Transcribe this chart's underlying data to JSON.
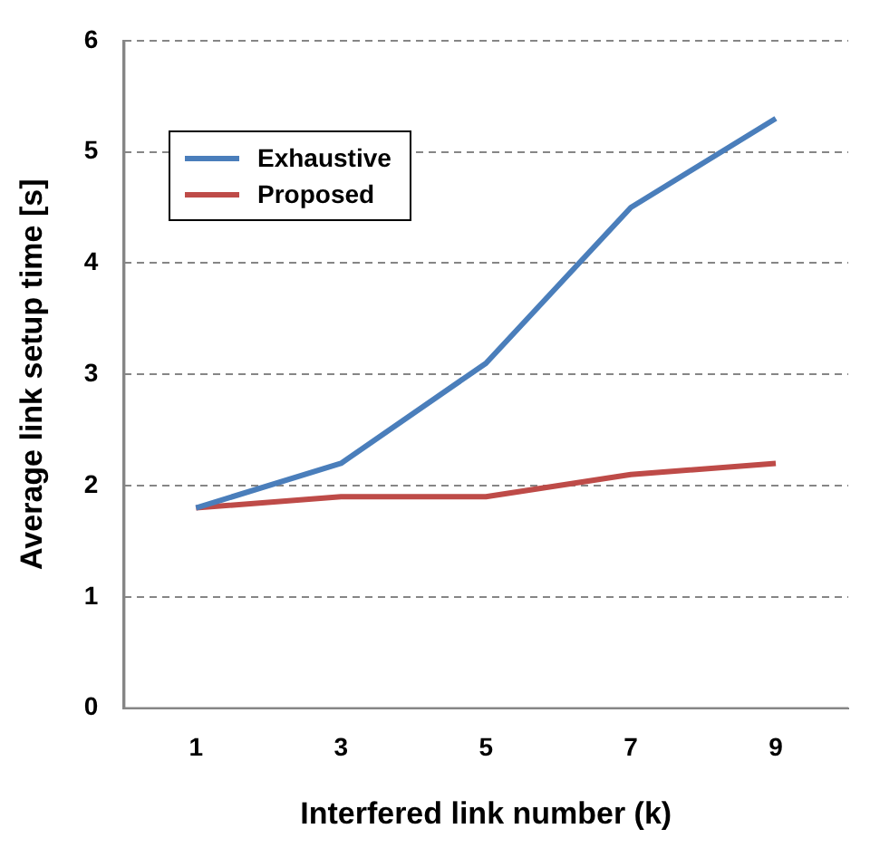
{
  "chart_data": {
    "type": "line",
    "xlabel": "Interfered link number (k)",
    "ylabel": "Average link setup time [s]",
    "categories": [
      "1",
      "3",
      "5",
      "7",
      "9"
    ],
    "series": [
      {
        "name": "Exhaustive",
        "color": "#4a7ebb",
        "values": [
          1.8,
          2.2,
          3.1,
          4.5,
          5.3
        ]
      },
      {
        "name": "Proposed",
        "color": "#be4b48",
        "values": [
          1.8,
          1.9,
          1.9,
          2.1,
          2.2
        ]
      }
    ],
    "ylim": [
      0,
      6
    ],
    "yticks": [
      0,
      1,
      2,
      3,
      4,
      5,
      6
    ],
    "grid": "y",
    "legend": "top left",
    "marker": "none",
    "line_style": "solid"
  }
}
